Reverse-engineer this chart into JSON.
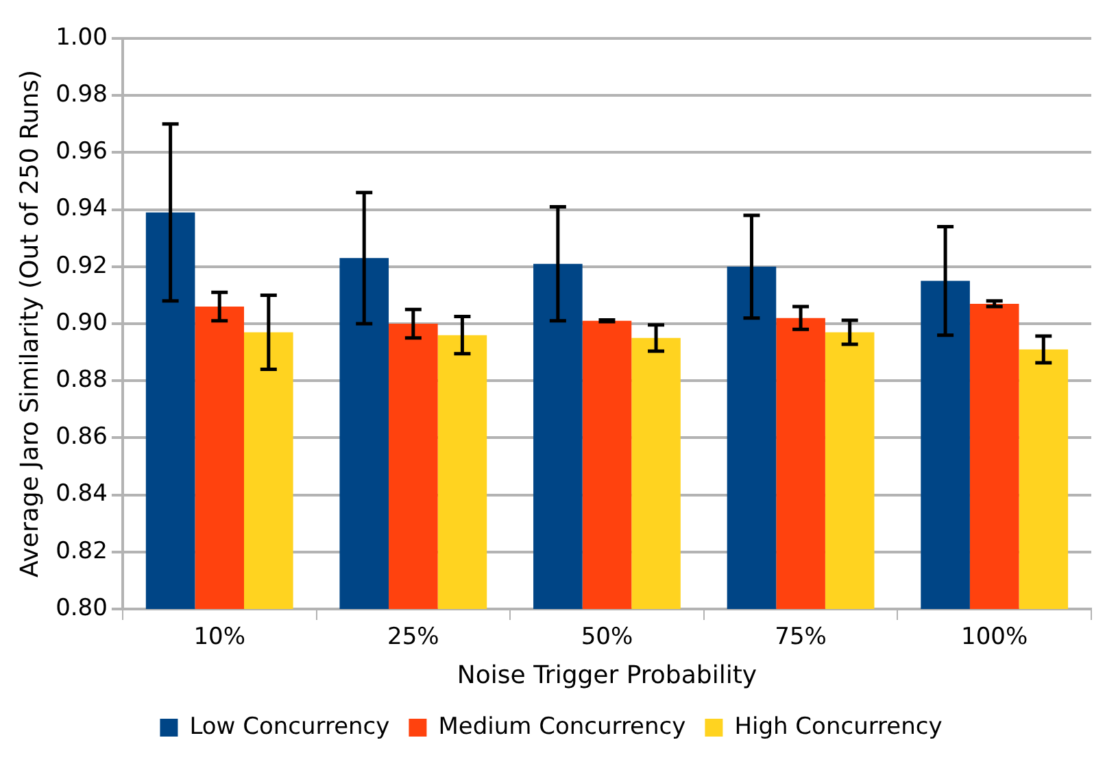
{
  "chart_data": {
    "type": "bar",
    "xlabel": "Noise Trigger Probability",
    "ylabel": "Average Jaro Similarity (Out of 250 Runs)",
    "categories": [
      "10%",
      "25%",
      "50%",
      "75%",
      "100%"
    ],
    "series": [
      {
        "name": "Low Concurrency",
        "color": "#004586",
        "values": [
          0.939,
          0.923,
          0.921,
          0.92,
          0.915
        ],
        "errors": [
          0.031,
          0.023,
          0.02,
          0.018,
          0.019
        ]
      },
      {
        "name": "Medium Concurrency",
        "color": "#ff420e",
        "values": [
          0.906,
          0.9,
          0.901,
          0.902,
          0.907
        ],
        "errors": [
          0.005,
          0.005,
          0.0003,
          0.004,
          0.001
        ]
      },
      {
        "name": "High Concurrency",
        "color": "#ffd320",
        "values": [
          0.897,
          0.896,
          0.895,
          0.897,
          0.891
        ],
        "errors": [
          0.013,
          0.0065,
          0.0046,
          0.0042,
          0.0047
        ]
      }
    ],
    "ylim": [
      0.8,
      1.0
    ],
    "yticks": [
      {
        "value": 0.8,
        "label": "0.80"
      },
      {
        "value": 0.82,
        "label": "0.82"
      },
      {
        "value": 0.84,
        "label": "0.84"
      },
      {
        "value": 0.86,
        "label": "0.86"
      },
      {
        "value": 0.88,
        "label": "0.88"
      },
      {
        "value": 0.9,
        "label": "0.90"
      },
      {
        "value": 0.92,
        "label": "0.92"
      },
      {
        "value": 0.94,
        "label": "0.94"
      },
      {
        "value": 0.96,
        "label": "0.96"
      },
      {
        "value": 0.98,
        "label": "0.98"
      },
      {
        "value": 1.0,
        "label": "1.00"
      }
    ],
    "grid": "y",
    "legend": "bottom"
  }
}
